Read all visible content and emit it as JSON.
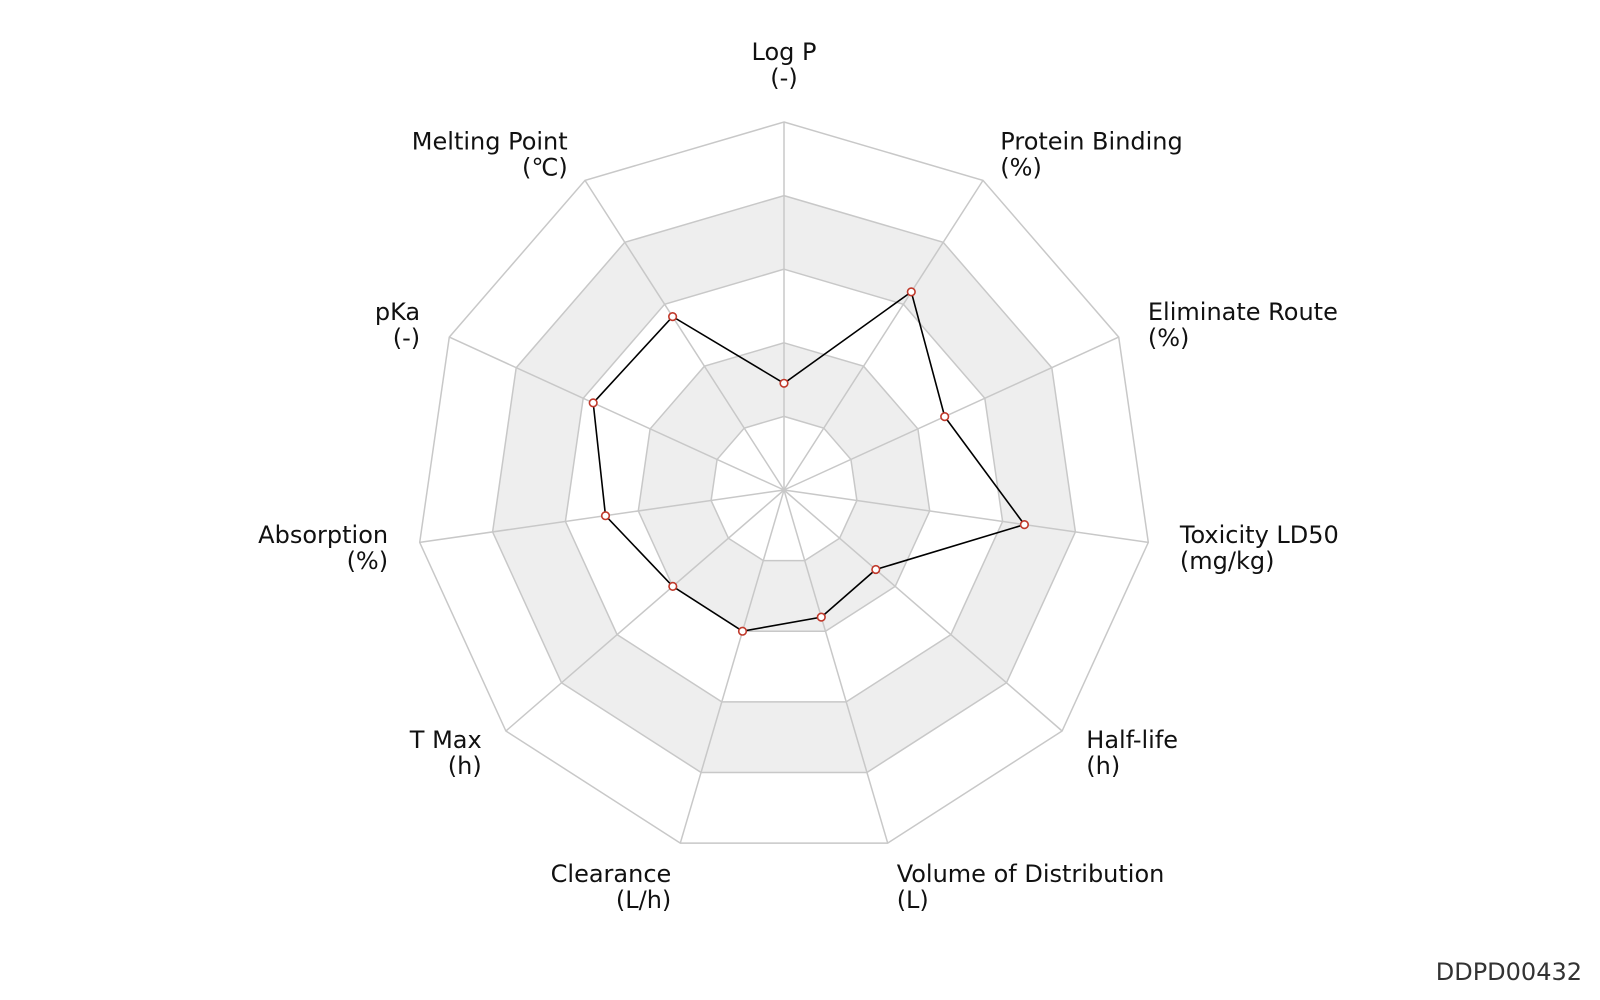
{
  "chart_data": {
    "type": "radar",
    "rings": 5,
    "range": [
      0,
      1
    ],
    "axes": [
      {
        "name": "Log P",
        "unit": "(-)"
      },
      {
        "name": "Protein Binding",
        "unit": "(%)"
      },
      {
        "name": "Eliminate Route",
        "unit": "(%)"
      },
      {
        "name": "Toxicity LD50",
        "unit": "(mg/kg)"
      },
      {
        "name": "Half-life",
        "unit": "(h)"
      },
      {
        "name": "Volume of Distribution",
        "unit": "(L)"
      },
      {
        "name": "Clearance",
        "unit": "(L/h)"
      },
      {
        "name": "T Max",
        "unit": "(h)"
      },
      {
        "name": "Absorption",
        "unit": "(%)"
      },
      {
        "name": "pKa",
        "unit": "(-)"
      },
      {
        "name": "Melting Point",
        "unit": "(℃)"
      }
    ],
    "series": [
      {
        "values": [
          0.29,
          0.64,
          0.48,
          0.66,
          0.33,
          0.36,
          0.4,
          0.4,
          0.49,
          0.57,
          0.56
        ]
      }
    ],
    "colors": {
      "line": "#000000",
      "marker_edge": "#c0392b",
      "marker_fill": "#ffffff",
      "grid": "#c8c8c8",
      "band": "#eeeeee"
    }
  },
  "watermark": "DDPD00432"
}
